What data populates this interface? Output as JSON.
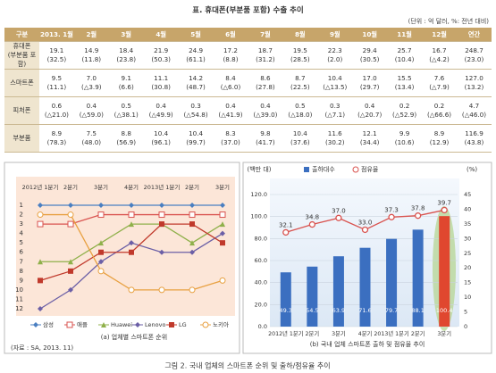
{
  "header": {
    "title": "표. 휴대폰(부분품 포함) 수출 추이",
    "unit": "(단위 : 억 달러, %: 전년 대비)"
  },
  "table": {
    "columns": [
      "구분",
      "2013. 1월",
      "2월",
      "3월",
      "4월",
      "5월",
      "6월",
      "7월",
      "8월",
      "9월",
      "10월",
      "11월",
      "12월",
      "연간"
    ],
    "rows": [
      {
        "label": "휴대폰",
        "sub": "(부분품 포함)",
        "cells": [
          [
            "19.1",
            "(32.5)"
          ],
          [
            "14.9",
            "(11.8)"
          ],
          [
            "18.4",
            "(23.8)"
          ],
          [
            "21.9",
            "(50.3)"
          ],
          [
            "24.9",
            "(61.1)"
          ],
          [
            "17.2",
            "(8.8)"
          ],
          [
            "18.7",
            "(31.2)"
          ],
          [
            "19.5",
            "(28.5)"
          ],
          [
            "22.3",
            "(2.0)"
          ],
          [
            "29.4",
            "(30.5)"
          ],
          [
            "25.7",
            "(10.4)"
          ],
          [
            "16.7",
            "(△4.2)"
          ],
          [
            "248.7",
            "(23.0)"
          ]
        ]
      },
      {
        "label": "스마트폰",
        "cells": [
          [
            "9.5",
            "(11.1)"
          ],
          [
            "7.0",
            "(△3.9)"
          ],
          [
            "9.1",
            "(6.6)"
          ],
          [
            "11.1",
            "(30.8)"
          ],
          [
            "14.2",
            "(48.7)"
          ],
          [
            "8.4",
            "(△6.0)"
          ],
          [
            "8.6",
            "(27.8)"
          ],
          [
            "8.7",
            "(22.5)"
          ],
          [
            "10.4",
            "(△13.5)"
          ],
          [
            "17.0",
            "(29.7)"
          ],
          [
            "15.5",
            "(13.4)"
          ],
          [
            "7.6",
            "(△7.9)"
          ],
          [
            "127.0",
            "(13.2)"
          ]
        ]
      },
      {
        "label": "피처폰",
        "cells": [
          [
            "0.6",
            "(△21.0)"
          ],
          [
            "0.4",
            "(△59.0)"
          ],
          [
            "0.5",
            "(△38.1)"
          ],
          [
            "0.4",
            "(△49.9)"
          ],
          [
            "0.3",
            "(△54.8)"
          ],
          [
            "0.4",
            "(△41.9)"
          ],
          [
            "0.4",
            "(△39.0)"
          ],
          [
            "0.5",
            "(△18.0)"
          ],
          [
            "0.3",
            "(△7.1)"
          ],
          [
            "0.4",
            "(△20.7)"
          ],
          [
            "0.2",
            "(△52.9)"
          ],
          [
            "0.2",
            "(△66.6)"
          ],
          [
            "4.7",
            "(△46.0)"
          ]
        ]
      },
      {
        "label": "부분품",
        "cells": [
          [
            "8.9",
            "(78.3)"
          ],
          [
            "7.5",
            "(48.0)"
          ],
          [
            "8.8",
            "(56.9)"
          ],
          [
            "10.4",
            "(96.1)"
          ],
          [
            "10.4",
            "(99.7)"
          ],
          [
            "8.3",
            "(37.0)"
          ],
          [
            "9.8",
            "(41.7)"
          ],
          [
            "10.4",
            "(37.6)"
          ],
          [
            "11.6",
            "(30.2)"
          ],
          [
            "12.1",
            "(34.4)"
          ],
          [
            "9.9",
            "(10.6)"
          ],
          [
            "8.9",
            "(12.9)"
          ],
          [
            "116.9",
            "(43.8)"
          ]
        ]
      }
    ]
  },
  "chart_data": [
    {
      "type": "line",
      "subtitle": "(a) 업체별 스마트폰 순위",
      "source": "(자료 : SA, 2013. 11)",
      "categories": [
        "2012년 1분기",
        "2분기",
        "3분기",
        "4분기",
        "2013년 1분기",
        "2분기",
        "3분기"
      ],
      "ylim": [
        12,
        1
      ],
      "yticks": [
        1,
        2,
        3,
        4,
        5,
        6,
        7,
        8,
        9,
        10,
        11,
        12
      ],
      "series": [
        {
          "name": "삼성",
          "color": "#4a7fc1",
          "marker": "diamond",
          "values": [
            1,
            1,
            1,
            1,
            1,
            1,
            1
          ]
        },
        {
          "name": "애플",
          "color": "#d9534f",
          "marker": "square-open",
          "values": [
            3,
            3,
            2,
            2,
            2,
            2,
            2
          ]
        },
        {
          "name": "Huawei",
          "color": "#8fb04a",
          "marker": "triangle",
          "values": [
            7,
            7,
            5,
            3,
            3,
            5,
            3
          ]
        },
        {
          "name": "Lenovo",
          "color": "#6b5fa6",
          "marker": "diamond",
          "values": [
            12,
            10,
            7,
            5,
            6,
            6,
            4
          ]
        },
        {
          "name": "LG",
          "color": "#c0392b",
          "marker": "square",
          "values": [
            9,
            8,
            6,
            6,
            3,
            3,
            5
          ]
        },
        {
          "name": "노키아",
          "color": "#e8a040",
          "marker": "circle-open",
          "values": [
            2,
            2,
            8,
            10,
            10,
            10,
            9
          ]
        }
      ]
    },
    {
      "type": "bar",
      "subtitle": "(b) 국내 업체 스마트폰 출하 및 점유율 추이",
      "y_label": "(백만 대)",
      "y2_label": "(%)",
      "categories": [
        "2012년 1분기",
        "2분기",
        "3분기",
        "4분기",
        "2013년 1분기",
        "2분기",
        "3분기"
      ],
      "ylim": [
        0,
        120
      ],
      "yticks": [
        {
          "value": 0,
          "label": "0.0"
        },
        {
          "value": 20,
          "label": "20.0"
        },
        {
          "value": 40,
          "label": "40.0"
        },
        {
          "value": 60,
          "label": "60.0"
        },
        {
          "value": 80,
          "label": "80.0"
        },
        {
          "value": 100,
          "label": "100.0"
        },
        {
          "value": 120,
          "label": "120.0"
        }
      ],
      "y2lim": [
        0,
        45
      ],
      "y2ticks": [
        0,
        5,
        10,
        15,
        20,
        25,
        30,
        35,
        40,
        45
      ],
      "grid": true,
      "series": [
        {
          "name": "출하대수",
          "color": "#3b6fc0",
          "colors": [
            "#3b6fc0",
            "#3b6fc0",
            "#3b6fc0",
            "#3b6fc0",
            "#3b6fc0",
            "#3b6fc0",
            "#e0472f"
          ],
          "values": [
            49.3,
            54.5,
            63.9,
            71.6,
            79.7,
            88.1,
            100.4
          ]
        },
        {
          "name": "점유율",
          "color": "#d9534f",
          "axis": "y2",
          "values": [
            32.1,
            34.8,
            37.0,
            33.0,
            37.3,
            37.8,
            39.7
          ],
          "value_labels": [
            "32.1",
            "34.8",
            "37.0",
            "33.0",
            "37.3",
            "37.8",
            "39.7"
          ]
        }
      ]
    }
  ],
  "caption": "그림 2. 국내 업체의 스마트폰 순위 및 출하/점유율 추이"
}
